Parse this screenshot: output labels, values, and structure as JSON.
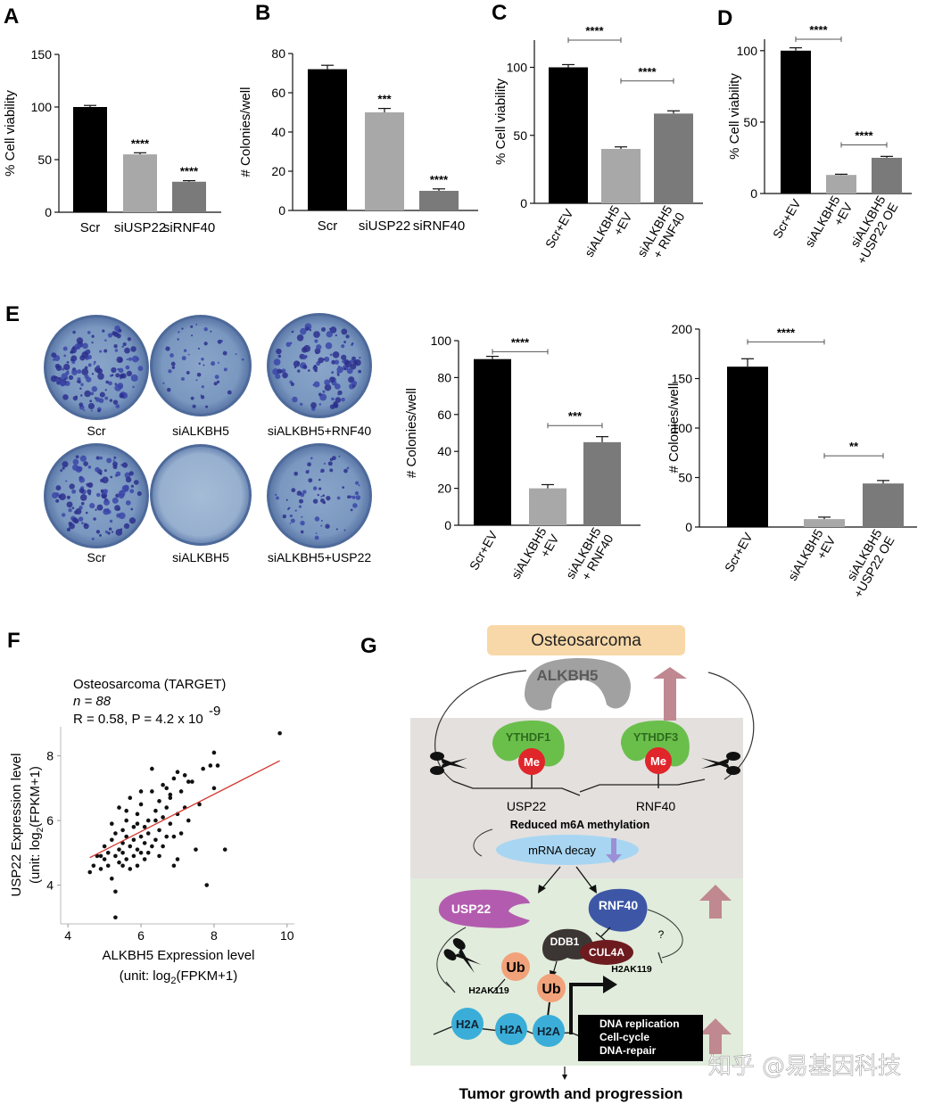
{
  "panels": {
    "A": "A",
    "B": "B",
    "C": "C",
    "D": "D",
    "E": "E",
    "F": "F",
    "G": "G"
  },
  "chart_data": [
    {
      "id": "A",
      "type": "bar",
      "categories": [
        "Scr",
        "siUSP22",
        "siRNF40"
      ],
      "values": [
        100,
        55,
        29
      ],
      "errors": [
        1.5,
        1.5,
        1
      ],
      "colors": [
        "#000000",
        "#a8a8a8",
        "#7a7a7a"
      ],
      "significance": [
        "",
        "****",
        "****"
      ],
      "ylabel": "% Cell viability",
      "ylim": [
        0,
        150
      ],
      "yticks": [
        0,
        50,
        100,
        150
      ],
      "rotate_labels": false
    },
    {
      "id": "B",
      "type": "bar",
      "categories": [
        "Scr",
        "siUSP22",
        "siRNF40"
      ],
      "values": [
        72,
        50,
        10
      ],
      "errors": [
        2,
        2,
        1
      ],
      "colors": [
        "#000000",
        "#a8a8a8",
        "#7a7a7a"
      ],
      "significance": [
        "",
        "***",
        "****"
      ],
      "ylabel": "# Colonies/well",
      "ylim": [
        0,
        80
      ],
      "yticks": [
        0,
        20,
        40,
        60,
        80
      ],
      "rotate_labels": false
    },
    {
      "id": "C",
      "type": "bar",
      "categories": [
        "Scr+EV",
        "siALKBH5\n+EV",
        "siALKBH5\n+ RNF40"
      ],
      "values": [
        100,
        40,
        66
      ],
      "errors": [
        2,
        1.5,
        2
      ],
      "colors": [
        "#000000",
        "#a8a8a8",
        "#7a7a7a"
      ],
      "brackets": [
        {
          "from": 0,
          "to": 1,
          "label": "****",
          "y": 120
        },
        {
          "from": 1,
          "to": 2,
          "label": "****",
          "y": 90
        }
      ],
      "ylabel": "% Cell viability",
      "ylim": [
        0,
        120
      ],
      "yticks": [
        0,
        50,
        100
      ],
      "rotate_labels": true
    },
    {
      "id": "D",
      "type": "bar",
      "categories": [
        "Scr+EV",
        "siALKBH5\n+EV",
        "siALKBH5\n+USP22 OE"
      ],
      "values": [
        100,
        13,
        25
      ],
      "errors": [
        2,
        0.5,
        1
      ],
      "colors": [
        "#000000",
        "#a8a8a8",
        "#7a7a7a"
      ],
      "brackets": [
        {
          "from": 0,
          "to": 1,
          "label": "****",
          "y": 108
        },
        {
          "from": 1,
          "to": 2,
          "label": "****",
          "y": 34
        }
      ],
      "ylabel": "% Cell viability",
      "ylim": [
        0,
        108
      ],
      "yticks": [
        0,
        50,
        100
      ],
      "rotate_labels": true
    },
    {
      "id": "E1",
      "type": "bar",
      "categories": [
        "Scr+EV",
        "siALKBH5\n+EV",
        "siALKBH5\n+ RNF40"
      ],
      "values": [
        90,
        20,
        45
      ],
      "errors": [
        1.5,
        2,
        3
      ],
      "colors": [
        "#000000",
        "#a8a8a8",
        "#7a7a7a"
      ],
      "brackets": [
        {
          "from": 0,
          "to": 1,
          "label": "****",
          "y": 94
        },
        {
          "from": 1,
          "to": 2,
          "label": "***",
          "y": 54
        }
      ],
      "ylabel": "# Colonies/well",
      "ylim": [
        0,
        100
      ],
      "yticks": [
        0,
        20,
        40,
        60,
        80,
        100
      ],
      "rotate_labels": true
    },
    {
      "id": "E2",
      "type": "bar",
      "categories": [
        "Scr+EV",
        "siALKBH5\n+EV",
        "siALKBH5\n+USP22 OE"
      ],
      "values": [
        162,
        8,
        44
      ],
      "errors": [
        8,
        2,
        3
      ],
      "colors": [
        "#000000",
        "#a8a8a8",
        "#7a7a7a"
      ],
      "brackets": [
        {
          "from": 0,
          "to": 1,
          "label": "****",
          "y": 187
        },
        {
          "from": 1,
          "to": 2,
          "label": "**",
          "y": 72
        }
      ],
      "ylabel": "# Colonies/well",
      "ylim": [
        0,
        200
      ],
      "yticks": [
        0,
        50,
        100,
        150,
        200
      ],
      "rotate_labels": true
    },
    {
      "id": "F",
      "type": "scatter",
      "title": "Osteosarcoma (TARGET)",
      "n_label": "n = 88",
      "stat_label": "R = 0.58, P = 4.2 x 10",
      "stat_exp": "-9",
      "xlabel_line1": "ALKBH5 Expression level",
      "xlabel_line2": "(unit: log",
      "xlabel_line2_end": "(FPKM+1)",
      "ylabel_line1": "USP22 Expression level",
      "ylabel_line2": "(unit: log",
      "ylabel_line2_end": "(FPKM+1)",
      "xlim": [
        3.8,
        10.2
      ],
      "ylim": [
        2.8,
        8.9
      ],
      "xticks": [
        4,
        6,
        8,
        10
      ],
      "yticks": [
        4,
        6,
        8
      ],
      "fit": {
        "x0": 4.6,
        "y0": 4.85,
        "x1": 9.8,
        "y1": 7.85
      },
      "points": [
        [
          4.6,
          4.4
        ],
        [
          4.7,
          4.6
        ],
        [
          4.8,
          4.9
        ],
        [
          4.9,
          4.5
        ],
        [
          5.0,
          4.8
        ],
        [
          5.0,
          5.2
        ],
        [
          5.1,
          4.6
        ],
        [
          5.1,
          5.0
        ],
        [
          5.2,
          4.2
        ],
        [
          5.2,
          5.4
        ],
        [
          5.3,
          3.8
        ],
        [
          5.3,
          4.9
        ],
        [
          5.3,
          5.6
        ],
        [
          5.4,
          5.1
        ],
        [
          5.4,
          4.7
        ],
        [
          5.4,
          6.4
        ],
        [
          5.5,
          5.0
        ],
        [
          5.5,
          5.3
        ],
        [
          5.5,
          5.7
        ],
        [
          5.6,
          4.8
        ],
        [
          5.6,
          5.5
        ],
        [
          5.6,
          6.0
        ],
        [
          5.7,
          4.5
        ],
        [
          5.7,
          5.2
        ],
        [
          5.7,
          6.7
        ],
        [
          5.8,
          4.9
        ],
        [
          5.8,
          5.4
        ],
        [
          5.8,
          5.8
        ],
        [
          5.9,
          5.1
        ],
        [
          5.9,
          6.2
        ],
        [
          5.9,
          4.6
        ],
        [
          6.0,
          5.5
        ],
        [
          6.0,
          5.0
        ],
        [
          6.0,
          6.5
        ],
        [
          6.1,
          5.3
        ],
        [
          6.1,
          5.8
        ],
        [
          6.1,
          4.8
        ],
        [
          6.2,
          6.0
        ],
        [
          6.2,
          5.6
        ],
        [
          6.3,
          5.2
        ],
        [
          6.3,
          6.9
        ],
        [
          6.3,
          7.6
        ],
        [
          6.4,
          5.4
        ],
        [
          6.4,
          6.3
        ],
        [
          6.5,
          5.7
        ],
        [
          6.5,
          6.6
        ],
        [
          6.5,
          4.9
        ],
        [
          6.6,
          6.1
        ],
        [
          6.6,
          7.1
        ],
        [
          6.7,
          5.5
        ],
        [
          6.7,
          6.4
        ],
        [
          6.7,
          7.0
        ],
        [
          6.8,
          6.8
        ],
        [
          6.8,
          5.9
        ],
        [
          6.9,
          7.3
        ],
        [
          6.9,
          4.6
        ],
        [
          7.0,
          6.2
        ],
        [
          7.0,
          7.5
        ],
        [
          7.1,
          5.6
        ],
        [
          7.1,
          6.9
        ],
        [
          7.2,
          7.4
        ],
        [
          7.2,
          6.4
        ],
        [
          7.3,
          6.0
        ],
        [
          7.4,
          7.2
        ],
        [
          7.5,
          5.1
        ],
        [
          7.6,
          6.5
        ],
        [
          7.7,
          7.6
        ],
        [
          7.8,
          4.0
        ],
        [
          7.9,
          7.7
        ],
        [
          8.0,
          8.1
        ],
        [
          8.0,
          7.0
        ],
        [
          8.1,
          7.7
        ],
        [
          8.3,
          5.1
        ],
        [
          9.8,
          8.7
        ],
        [
          5.3,
          3.0
        ],
        [
          5.9,
          5.9
        ],
        [
          6.2,
          5.0
        ],
        [
          6.4,
          6.0
        ],
        [
          5.2,
          5.9
        ],
        [
          6.8,
          6.7
        ],
        [
          7.0,
          4.8
        ],
        [
          5.6,
          6.3
        ],
        [
          6.0,
          6.9
        ],
        [
          7.3,
          7.2
        ],
        [
          6.6,
          5.2
        ],
        [
          5.5,
          4.6
        ],
        [
          4.9,
          4.9
        ],
        [
          6.9,
          5.5
        ]
      ]
    }
  ],
  "colony": {
    "row1": [
      "Scr",
      "siALKBH5",
      "siALKBH5+RNF40"
    ],
    "row2": [
      "Scr",
      "siALKBH5",
      "siALKBH5+USP22"
    ]
  },
  "diagram": {
    "top_box": "Osteosarcoma",
    "alkbh5": "ALKBH5",
    "ythdf1": "YTHDF1",
    "ythdf3": "YTHDF3",
    "me": "Me",
    "usp22_gene": "USP22",
    "rnf40_gene": "RNF40",
    "reduced": "Reduced m6A methylation",
    "decay": "mRNA decay",
    "usp22_protein": "USP22",
    "rnf40_protein": "RNF40",
    "ddb1": "DDB1",
    "cul4a": "CUL4A",
    "h2ak119_a": "H2AK119",
    "h2ak119_b": "H2AK119",
    "question": "?",
    "ub": "Ub",
    "h2a": "H2A",
    "box_lines": [
      "DNA replication",
      "Cell-cycle",
      "DNA-repair"
    ],
    "bottom": "Tumor growth and progression"
  },
  "watermark": "知乎 @易基因科技"
}
